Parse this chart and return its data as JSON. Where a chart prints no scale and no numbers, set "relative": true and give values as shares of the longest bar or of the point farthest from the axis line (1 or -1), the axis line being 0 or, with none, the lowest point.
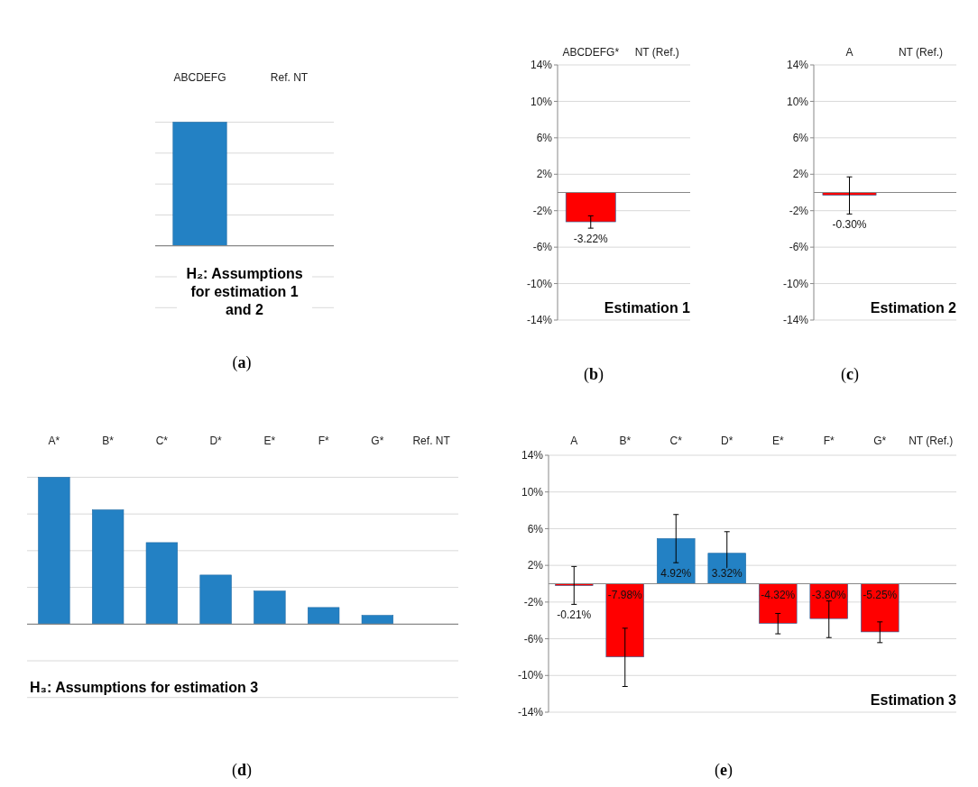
{
  "chart_data": [
    {
      "type": "bar",
      "title": "H₂: Assumptions for estimation 1 and 2",
      "categories": [
        "ABCDEFG",
        "Ref. NT"
      ],
      "values": [
        1,
        0
      ],
      "color": "#2381c4",
      "relative": true,
      "grid": true,
      "annotations": [
        "(a)"
      ]
    },
    {
      "type": "bar",
      "title": "Estimation 1",
      "categories": [
        "ABCDEFG*",
        "NT (Ref.)"
      ],
      "values": [
        -3.22,
        null
      ],
      "color": "#ff0000",
      "errors": [
        [
          -3.92,
          -2.56
        ],
        null
      ],
      "value_labels": [
        "-3.22%",
        null
      ],
      "ylim": [
        -14,
        14
      ],
      "yticks": [
        {
          "value": -14,
          "label": "-14%"
        },
        {
          "value": -10,
          "label": "-10%"
        },
        {
          "value": -6,
          "label": "-6%"
        },
        {
          "value": -2,
          "label": "-2%"
        },
        {
          "value": 2,
          "label": "2%"
        },
        {
          "value": 6,
          "label": "6%"
        },
        {
          "value": 10,
          "label": "10%"
        },
        {
          "value": 14,
          "label": "14%"
        }
      ],
      "grid": "y",
      "annotations": [
        "(b)"
      ]
    },
    {
      "type": "bar",
      "title": "Estimation 2",
      "categories": [
        "A",
        "NT (Ref.)"
      ],
      "values": [
        -0.3,
        null
      ],
      "color": "#ff0000",
      "errors": [
        [
          -2.36,
          1.71
        ],
        null
      ],
      "value_labels": [
        "-0.30%",
        null
      ],
      "ylim": [
        -14,
        14
      ],
      "yticks": [
        {
          "value": -14,
          "label": "-14%"
        },
        {
          "value": -10,
          "label": "-10%"
        },
        {
          "value": -6,
          "label": "-6%"
        },
        {
          "value": -2,
          "label": "-2%"
        },
        {
          "value": 2,
          "label": "2%"
        },
        {
          "value": 6,
          "label": "6%"
        },
        {
          "value": 10,
          "label": "10%"
        },
        {
          "value": 14,
          "label": "14%"
        }
      ],
      "grid": "y",
      "annotations": [
        "(c)"
      ]
    },
    {
      "type": "bar",
      "title": "H₃: Assumptions for estimation 3",
      "categories": [
        "A*",
        "B*",
        "C*",
        "D*",
        "E*",
        "F*",
        "G*",
        "Ref. NT"
      ],
      "values": [
        1,
        0.778,
        0.555,
        0.334,
        0.225,
        0.113,
        0.059,
        0
      ],
      "color": "#2381c4",
      "relative": true,
      "grid": true,
      "annotations": [
        "(d)"
      ]
    },
    {
      "type": "bar",
      "title": "Estimation 3",
      "categories": [
        "A",
        "B*",
        "C*",
        "D*",
        "E*",
        "F*",
        "G*",
        "NT  (Ref.)"
      ],
      "values": [
        -0.21,
        -7.98,
        4.92,
        3.32,
        -4.32,
        -3.8,
        -5.25,
        null
      ],
      "colors": [
        "#ff0000",
        "#ff0000",
        "#2381c4",
        "#2381c4",
        "#ff0000",
        "#ff0000",
        "#ff0000",
        null
      ],
      "errors": [
        [
          -2.25,
          1.88
        ],
        [
          -11.2,
          -4.85
        ],
        [
          2.29,
          7.54
        ],
        [
          0.9,
          5.67
        ],
        [
          -5.46,
          -3.24
        ],
        [
          -5.87,
          -1.88
        ],
        [
          -6.42,
          -4.16
        ],
        null
      ],
      "value_labels": [
        "-0.21%",
        "-7.98%",
        "4.92%",
        "3.32%",
        "-4.32%",
        "-3.80%",
        "-5.25%",
        null
      ],
      "ylim": [
        -14,
        14
      ],
      "yticks": [
        {
          "value": -14,
          "label": "-14%"
        },
        {
          "value": -10,
          "label": "-10%"
        },
        {
          "value": -6,
          "label": "-6%"
        },
        {
          "value": -2,
          "label": "-2%"
        },
        {
          "value": 2,
          "label": "2%"
        },
        {
          "value": 6,
          "label": "6%"
        },
        {
          "value": 10,
          "label": "10%"
        },
        {
          "value": 14,
          "label": "14%"
        }
      ],
      "grid": "y",
      "annotations": [
        "(e)"
      ]
    }
  ]
}
